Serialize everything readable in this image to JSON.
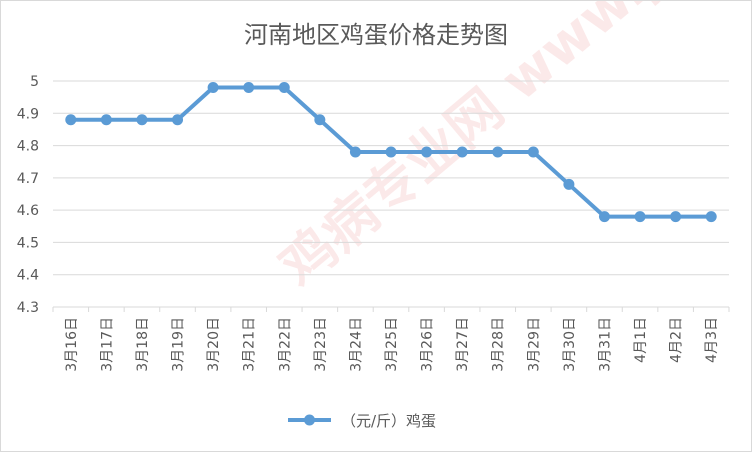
{
  "chart_data": {
    "type": "line",
    "title": "河南地区鸡蛋价格走势图",
    "xlabel": "",
    "ylabel": "",
    "categories": [
      "3月16日",
      "3月17日",
      "3月18日",
      "3月19日",
      "3月20日",
      "3月21日",
      "3月22日",
      "3月23日",
      "3月24日",
      "3月25日",
      "3月26日",
      "3月27日",
      "3月28日",
      "3月29日",
      "3月30日",
      "3月31日",
      "4月1日",
      "4月2日",
      "4月3日"
    ],
    "series": [
      {
        "name": "（元/斤）鸡蛋",
        "color": "#5b9bd5",
        "values": [
          4.88,
          4.88,
          4.88,
          4.88,
          4.98,
          4.98,
          4.98,
          4.88,
          4.78,
          4.78,
          4.78,
          4.78,
          4.78,
          4.78,
          4.68,
          4.58,
          4.58,
          4.58,
          4.58
        ]
      }
    ],
    "ylim": [
      4.3,
      5.0
    ],
    "yticks": [
      "4.3",
      "4.4",
      "4.5",
      "4.6",
      "4.7",
      "4.8",
      "4.9",
      "5"
    ],
    "grid": true,
    "legend": "bottom",
    "watermark": "鸡病专业网 www.jbzyw.com"
  }
}
